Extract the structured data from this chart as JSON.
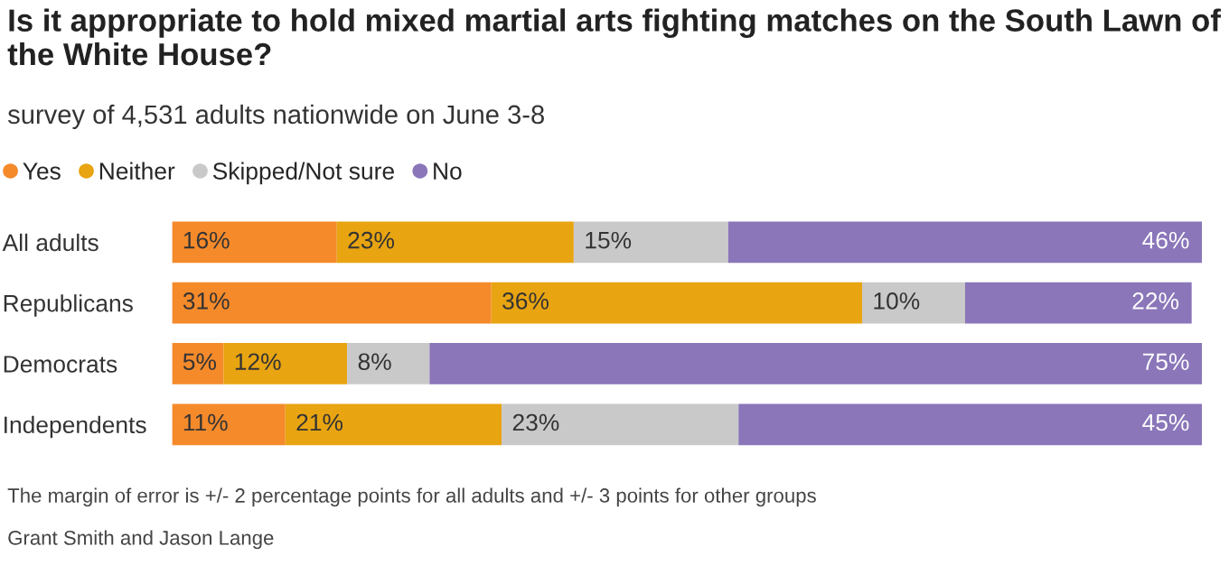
{
  "chart_data": {
    "type": "bar",
    "stacked": true,
    "orientation": "horizontal",
    "title": "Is it appropriate to hold mixed martial arts fighting matches on the South Lawn of the White House?",
    "subtitle": "survey of 4,531 adults nationwide on June 3-8",
    "categories": [
      "All adults",
      "Republicans",
      "Democrats",
      "Independents"
    ],
    "series": [
      {
        "name": "Yes",
        "color": "#f58a2b",
        "values": [
          16,
          31,
          5,
          11
        ],
        "value_labels": [
          "16%",
          "31%",
          "5%",
          "11%"
        ]
      },
      {
        "name": "Neither",
        "color": "#e8a411",
        "values": [
          23,
          36,
          12,
          21
        ],
        "value_labels": [
          "23%",
          "36%",
          "12%",
          "21%"
        ]
      },
      {
        "name": "Skipped/Not sure",
        "color": "#c9c9c9",
        "values": [
          15,
          10,
          8,
          23
        ],
        "value_labels": [
          "15%",
          "10%",
          "8%",
          "23%"
        ]
      },
      {
        "name": "No",
        "color": "#8a76b9",
        "values": [
          46,
          22,
          75,
          45
        ],
        "value_labels": [
          "46%",
          "22%",
          "75%",
          "45%"
        ]
      }
    ],
    "legend": "top left",
    "grid": false,
    "annotations": [
      "The margin of error is +/- 2 percentage points for all adults and +/- 3 points for other groups",
      "Grant Smith and Jason Lange"
    ]
  }
}
